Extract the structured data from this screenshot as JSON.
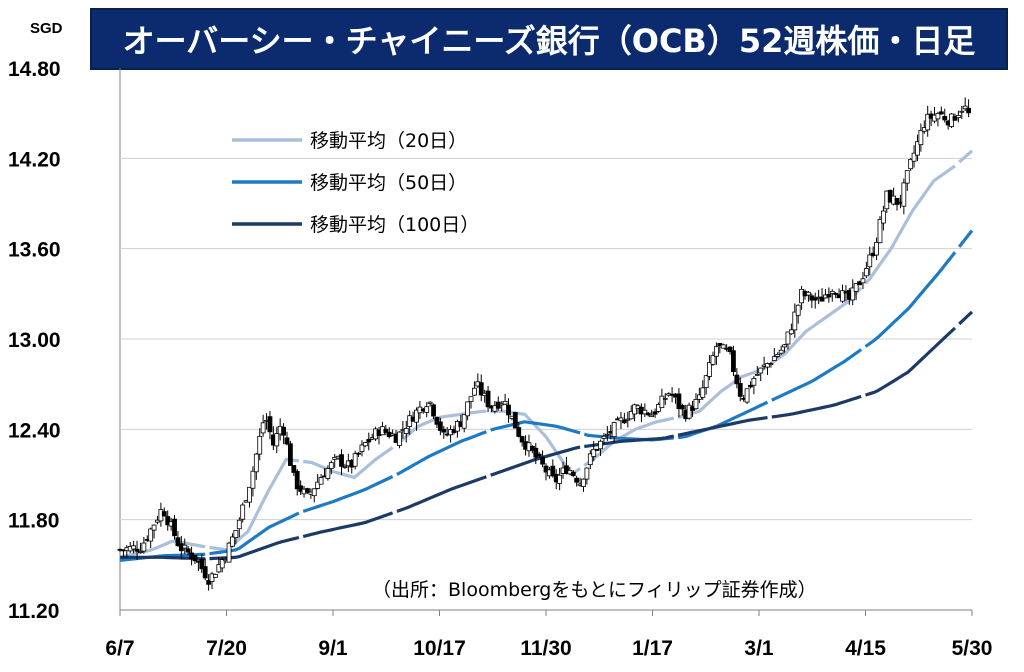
{
  "title": "オーバーシー・チャイニーズ銀行（OCB）52週株価・日足",
  "chart_data": {
    "type": "candlestick",
    "unit": "SGD",
    "ylim": [
      11.2,
      14.8
    ],
    "y_ticks": [
      "14.80",
      "14.20",
      "13.60",
      "13.00",
      "12.40",
      "11.80",
      "11.20"
    ],
    "y_tick_values": [
      14.8,
      14.2,
      13.6,
      13.0,
      12.4,
      11.8,
      11.2
    ],
    "x_ticks": [
      "6/7",
      "7/20",
      "9/1",
      "10/17",
      "11/30",
      "1/17",
      "3/1",
      "4/15",
      "5/30"
    ],
    "grid": true,
    "legend_placement": "top-left",
    "legend": [
      "移動平均（20日）",
      "移動平均（50日）",
      "移動平均（100日）"
    ],
    "source_note": "（出所：Bloombergをもとにフィリップ証券作成）",
    "colors": {
      "ma20": "#a9bfdc",
      "ma50": "#1f7ac4",
      "ma100": "#1d3a66",
      "candle": "#000000",
      "title_bg": "#0b2b6e"
    },
    "close_series": [
      {
        "x": 0,
        "y": 11.6
      },
      {
        "x": 10,
        "y": 11.62
      },
      {
        "x": 20,
        "y": 11.88
      },
      {
        "x": 28,
        "y": 11.62
      },
      {
        "x": 35,
        "y": 11.55
      },
      {
        "x": 42,
        "y": 11.4
      },
      {
        "x": 50,
        "y": 11.58
      },
      {
        "x": 55,
        "y": 11.75
      },
      {
        "x": 62,
        "y": 12.1
      },
      {
        "x": 68,
        "y": 12.5
      },
      {
        "x": 72,
        "y": 12.3
      },
      {
        "x": 76,
        "y": 12.45
      },
      {
        "x": 82,
        "y": 12.05
      },
      {
        "x": 88,
        "y": 11.95
      },
      {
        "x": 95,
        "y": 12.1
      },
      {
        "x": 102,
        "y": 12.2
      },
      {
        "x": 108,
        "y": 12.15
      },
      {
        "x": 115,
        "y": 12.3
      },
      {
        "x": 122,
        "y": 12.4
      },
      {
        "x": 130,
        "y": 12.35
      },
      {
        "x": 138,
        "y": 12.5
      },
      {
        "x": 145,
        "y": 12.6
      },
      {
        "x": 152,
        "y": 12.35
      },
      {
        "x": 160,
        "y": 12.45
      },
      {
        "x": 167,
        "y": 12.7
      },
      {
        "x": 174,
        "y": 12.55
      },
      {
        "x": 180,
        "y": 12.6
      },
      {
        "x": 188,
        "y": 12.35
      },
      {
        "x": 196,
        "y": 12.2
      },
      {
        "x": 204,
        "y": 12.05
      },
      {
        "x": 210,
        "y": 12.15
      },
      {
        "x": 216,
        "y": 12.05
      },
      {
        "x": 222,
        "y": 12.25
      },
      {
        "x": 228,
        "y": 12.35
      },
      {
        "x": 235,
        "y": 12.45
      },
      {
        "x": 242,
        "y": 12.55
      },
      {
        "x": 250,
        "y": 12.5
      },
      {
        "x": 258,
        "y": 12.65
      },
      {
        "x": 265,
        "y": 12.5
      },
      {
        "x": 272,
        "y": 12.6
      },
      {
        "x": 280,
        "y": 12.95
      },
      {
        "x": 286,
        "y": 12.9
      },
      {
        "x": 292,
        "y": 12.6
      },
      {
        "x": 298,
        "y": 12.75
      },
      {
        "x": 305,
        "y": 12.85
      },
      {
        "x": 312,
        "y": 12.95
      },
      {
        "x": 320,
        "y": 13.3
      },
      {
        "x": 328,
        "y": 13.25
      },
      {
        "x": 335,
        "y": 13.35
      },
      {
        "x": 342,
        "y": 13.25
      },
      {
        "x": 348,
        "y": 13.4
      },
      {
        "x": 354,
        "y": 13.6
      },
      {
        "x": 360,
        "y": 13.95
      },
      {
        "x": 366,
        "y": 13.9
      },
      {
        "x": 372,
        "y": 14.2
      },
      {
        "x": 378,
        "y": 14.45
      },
      {
        "x": 384,
        "y": 14.5
      },
      {
        "x": 390,
        "y": 14.45
      },
      {
        "x": 396,
        "y": 14.55
      },
      {
        "x": 400,
        "y": 14.45
      }
    ],
    "series": [
      {
        "name": "移動平均（20日）",
        "points": [
          {
            "x": 0,
            "y": 11.55
          },
          {
            "x": 15,
            "y": 11.6
          },
          {
            "x": 25,
            "y": 11.66
          },
          {
            "x": 40,
            "y": 11.62
          },
          {
            "x": 50,
            "y": 11.6
          },
          {
            "x": 60,
            "y": 11.72
          },
          {
            "x": 70,
            "y": 12.0
          },
          {
            "x": 78,
            "y": 12.2
          },
          {
            "x": 90,
            "y": 12.18
          },
          {
            "x": 100,
            "y": 12.12
          },
          {
            "x": 110,
            "y": 12.08
          },
          {
            "x": 120,
            "y": 12.2
          },
          {
            "x": 130,
            "y": 12.3
          },
          {
            "x": 140,
            "y": 12.42
          },
          {
            "x": 150,
            "y": 12.48
          },
          {
            "x": 160,
            "y": 12.5
          },
          {
            "x": 170,
            "y": 12.52
          },
          {
            "x": 180,
            "y": 12.52
          },
          {
            "x": 190,
            "y": 12.5
          },
          {
            "x": 200,
            "y": 12.35
          },
          {
            "x": 212,
            "y": 12.1
          },
          {
            "x": 222,
            "y": 12.2
          },
          {
            "x": 232,
            "y": 12.32
          },
          {
            "x": 242,
            "y": 12.4
          },
          {
            "x": 252,
            "y": 12.45
          },
          {
            "x": 262,
            "y": 12.48
          },
          {
            "x": 272,
            "y": 12.52
          },
          {
            "x": 282,
            "y": 12.65
          },
          {
            "x": 292,
            "y": 12.75
          },
          {
            "x": 302,
            "y": 12.8
          },
          {
            "x": 312,
            "y": 12.9
          },
          {
            "x": 322,
            "y": 13.05
          },
          {
            "x": 332,
            "y": 13.15
          },
          {
            "x": 342,
            "y": 13.25
          },
          {
            "x": 352,
            "y": 13.4
          },
          {
            "x": 362,
            "y": 13.6
          },
          {
            "x": 372,
            "y": 13.85
          },
          {
            "x": 382,
            "y": 14.05
          },
          {
            "x": 392,
            "y": 14.15
          },
          {
            "x": 400,
            "y": 14.25
          }
        ]
      },
      {
        "name": "移動平均（50日）",
        "points": [
          {
            "x": 0,
            "y": 11.53
          },
          {
            "x": 20,
            "y": 11.56
          },
          {
            "x": 40,
            "y": 11.57
          },
          {
            "x": 55,
            "y": 11.6
          },
          {
            "x": 70,
            "y": 11.75
          },
          {
            "x": 85,
            "y": 11.85
          },
          {
            "x": 100,
            "y": 11.92
          },
          {
            "x": 115,
            "y": 12.0
          },
          {
            "x": 130,
            "y": 12.1
          },
          {
            "x": 145,
            "y": 12.22
          },
          {
            "x": 160,
            "y": 12.32
          },
          {
            "x": 175,
            "y": 12.4
          },
          {
            "x": 190,
            "y": 12.45
          },
          {
            "x": 205,
            "y": 12.42
          },
          {
            "x": 220,
            "y": 12.36
          },
          {
            "x": 235,
            "y": 12.34
          },
          {
            "x": 250,
            "y": 12.33
          },
          {
            "x": 265,
            "y": 12.35
          },
          {
            "x": 280,
            "y": 12.42
          },
          {
            "x": 295,
            "y": 12.52
          },
          {
            "x": 310,
            "y": 12.62
          },
          {
            "x": 325,
            "y": 12.72
          },
          {
            "x": 340,
            "y": 12.85
          },
          {
            "x": 355,
            "y": 13.0
          },
          {
            "x": 370,
            "y": 13.2
          },
          {
            "x": 385,
            "y": 13.45
          },
          {
            "x": 400,
            "y": 13.72
          }
        ]
      },
      {
        "name": "移動平均（100日）",
        "points": [
          {
            "x": 0,
            "y": 11.55
          },
          {
            "x": 20,
            "y": 11.55
          },
          {
            "x": 40,
            "y": 11.54
          },
          {
            "x": 55,
            "y": 11.55
          },
          {
            "x": 75,
            "y": 11.65
          },
          {
            "x": 95,
            "y": 11.72
          },
          {
            "x": 115,
            "y": 11.78
          },
          {
            "x": 135,
            "y": 11.88
          },
          {
            "x": 155,
            "y": 12.0
          },
          {
            "x": 175,
            "y": 12.1
          },
          {
            "x": 195,
            "y": 12.2
          },
          {
            "x": 215,
            "y": 12.28
          },
          {
            "x": 235,
            "y": 12.32
          },
          {
            "x": 255,
            "y": 12.34
          },
          {
            "x": 275,
            "y": 12.4
          },
          {
            "x": 295,
            "y": 12.46
          },
          {
            "x": 315,
            "y": 12.5
          },
          {
            "x": 335,
            "y": 12.56
          },
          {
            "x": 355,
            "y": 12.65
          },
          {
            "x": 370,
            "y": 12.78
          },
          {
            "x": 385,
            "y": 12.98
          },
          {
            "x": 400,
            "y": 13.18
          }
        ]
      }
    ]
  }
}
